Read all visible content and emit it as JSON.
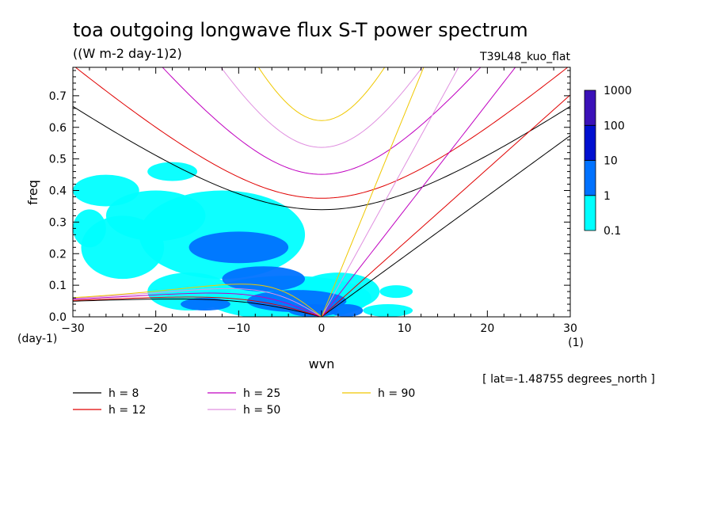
{
  "chart_data": {
    "type": "heatmap",
    "title": "toa outgoing longwave flux S-T power spectrum",
    "subtitle": "((W m-2 day-1)2)",
    "run_label": "T39L48_kuo_flat",
    "xlabel": "wvn",
    "ylabel": "freq",
    "x_unit": "(1)",
    "y_unit": "(day-1)",
    "annotation": "[ lat=-1.48755 degrees_north ]",
    "xlim": [
      -30,
      30
    ],
    "ylim": [
      0,
      0.79
    ],
    "x_ticks": [
      "-30",
      "-20",
      "-10",
      "0",
      "10",
      "20",
      "30"
    ],
    "y_ticks": [
      "0.0",
      "0.1",
      "0.2",
      "0.3",
      "0.4",
      "0.5",
      "0.6",
      "0.7"
    ],
    "colorbar": {
      "levels": [
        "0.1",
        "1",
        "10",
        "100",
        "1000"
      ],
      "colors": [
        "#00ffff",
        "#0072ff",
        "#0010d0",
        "#3b11b8"
      ]
    },
    "dispersion_curves": [
      {
        "name": "h = 8",
        "h": 8,
        "color": "#000000"
      },
      {
        "name": "h = 12",
        "h": 12,
        "color": "#e00000"
      },
      {
        "name": "h = 25",
        "h": 25,
        "color": "#c000c0"
      },
      {
        "name": "h = 50",
        "h": 50,
        "color": "#e090e0"
      },
      {
        "name": "h = 90",
        "h": 90,
        "color": "#f0c800"
      }
    ],
    "power_blobs": [
      {
        "x": -3,
        "y": 0.05,
        "rx": 6,
        "ry": 0.035,
        "level": 2
      },
      {
        "x": -1,
        "y": 0.02,
        "rx": 3,
        "ry": 0.02,
        "level": 2
      },
      {
        "x": -10,
        "y": 0.22,
        "rx": 6,
        "ry": 0.05,
        "level": 2
      },
      {
        "x": -7,
        "y": 0.12,
        "rx": 5,
        "ry": 0.04,
        "level": 2
      },
      {
        "x": -14,
        "y": 0.04,
        "rx": 3,
        "ry": 0.02,
        "level": 2
      },
      {
        "x": 3,
        "y": 0.02,
        "rx": 2,
        "ry": 0.02,
        "level": 2
      },
      {
        "x": -12,
        "y": 0.26,
        "rx": 10,
        "ry": 0.14,
        "level": 1
      },
      {
        "x": -4,
        "y": 0.06,
        "rx": 10,
        "ry": 0.07,
        "level": 1
      },
      {
        "x": -20,
        "y": 0.32,
        "rx": 6,
        "ry": 0.08,
        "level": 1
      },
      {
        "x": -24,
        "y": 0.22,
        "rx": 5,
        "ry": 0.1,
        "level": 1
      },
      {
        "x": -26,
        "y": 0.4,
        "rx": 4,
        "ry": 0.05,
        "level": 1
      },
      {
        "x": -18,
        "y": 0.46,
        "rx": 3,
        "ry": 0.03,
        "level": 1
      },
      {
        "x": 2,
        "y": 0.08,
        "rx": 5,
        "ry": 0.06,
        "level": 1
      },
      {
        "x": 9,
        "y": 0.08,
        "rx": 2,
        "ry": 0.02,
        "level": 1
      },
      {
        "x": 8,
        "y": 0.02,
        "rx": 3,
        "ry": 0.02,
        "level": 1
      },
      {
        "x": -16,
        "y": 0.08,
        "rx": 5,
        "ry": 0.06,
        "level": 1
      },
      {
        "x": -28,
        "y": 0.28,
        "rx": 2,
        "ry": 0.06,
        "level": 1
      }
    ]
  }
}
